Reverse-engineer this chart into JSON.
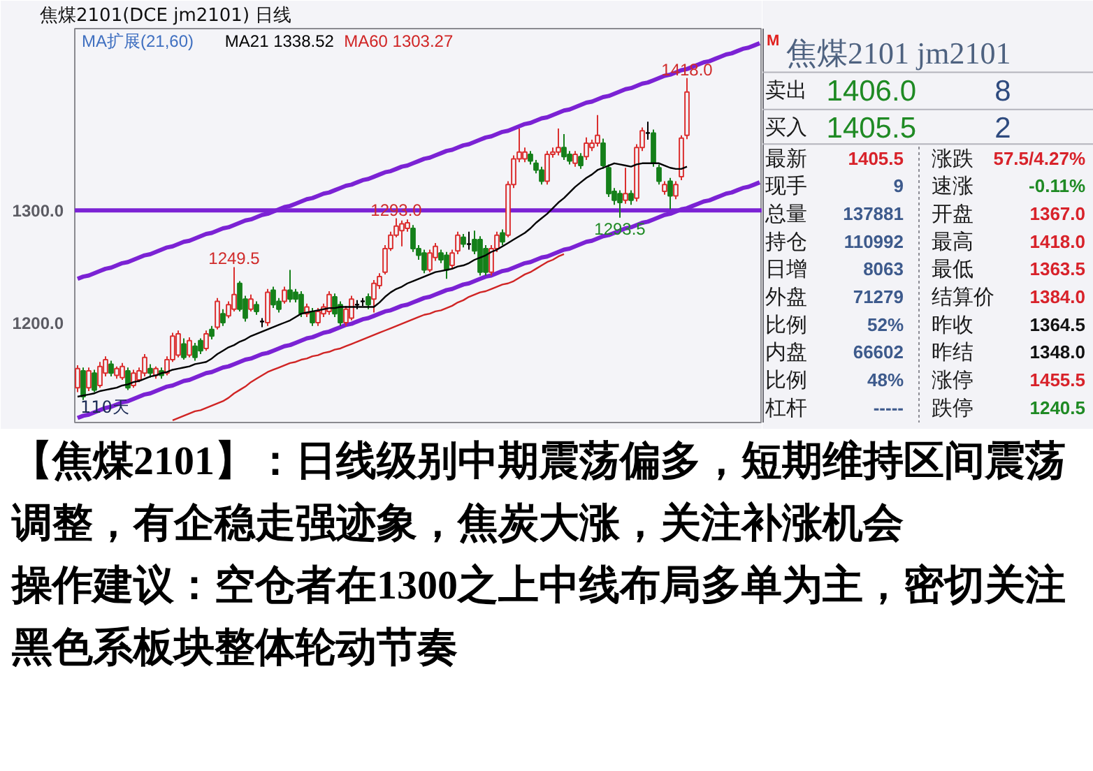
{
  "chart_data": [
    {
      "type": "candlestick",
      "title": "焦煤2101(DCE jm2101)  日线",
      "categories": [
        null,
        null,
        null,
        null,
        null,
        null,
        null,
        null,
        null,
        null,
        null,
        null,
        null,
        null,
        null,
        null,
        null,
        null,
        null,
        null,
        null,
        null,
        null,
        null,
        null,
        null,
        null,
        null,
        null,
        null,
        null,
        null,
        null,
        null,
        null,
        null,
        null,
        null,
        null,
        null,
        null,
        null,
        null,
        null,
        null,
        null,
        null,
        null,
        null,
        null,
        null,
        null,
        null,
        null,
        null,
        null,
        null,
        null,
        null,
        null,
        null,
        null,
        null,
        null,
        null,
        null,
        null,
        null,
        null,
        null,
        null,
        null,
        null,
        null,
        null,
        null,
        null,
        null,
        null,
        null,
        null,
        null,
        null,
        null,
        null,
        null,
        null,
        null,
        null,
        null,
        null,
        null,
        null,
        null,
        null,
        null,
        null,
        null,
        null,
        null,
        null,
        null,
        null,
        null,
        null,
        null,
        null,
        null,
        null,
        null,
        null,
        null,
        null,
        null,
        null,
        null,
        null,
        null,
        null,
        null,
        null,
        null,
        null
      ],
      "ohlc": [
        [
          1142,
          1162,
          1138,
          1159
        ],
        [
          1157,
          1160,
          1131,
          1134
        ],
        [
          1142,
          1160,
          1139,
          1157
        ],
        [
          1155,
          1158,
          1138,
          1140
        ],
        [
          1144,
          1165,
          1142,
          1161
        ],
        [
          1155,
          1170,
          1152,
          1167
        ],
        [
          1163,
          1166,
          1152,
          1155
        ],
        [
          1153,
          1161,
          1150,
          1159
        ],
        [
          1151,
          1164,
          1149,
          1161
        ],
        [
          1157,
          1160,
          1140,
          1142
        ],
        [
          1144,
          1158,
          1142,
          1155
        ],
        [
          1149,
          1160,
          1147,
          1157
        ],
        [
          1155,
          1172,
          1152,
          1169
        ],
        [
          1159,
          1163,
          1151,
          1155
        ],
        [
          1153,
          1161,
          1150,
          1159
        ],
        [
          1157,
          1160,
          1150,
          1153
        ],
        [
          1155,
          1170,
          1153,
          1167
        ],
        [
          1167,
          1191,
          1165,
          1188
        ],
        [
          1171,
          1193,
          1169,
          1190
        ],
        [
          1181,
          1186,
          1167,
          1169
        ],
        [
          1171,
          1187,
          1169,
          1184
        ],
        [
          1179,
          1182,
          1166,
          1169
        ],
        [
          1184,
          1186,
          1172,
          1175
        ],
        [
          1177,
          1193,
          1175,
          1190
        ],
        [
          1194,
          1197,
          1185,
          1188
        ],
        [
          1196,
          1222,
          1194,
          1219
        ],
        [
          1208,
          1212,
          1197,
          1200
        ],
        [
          1206,
          1219,
          1204,
          1216
        ],
        [
          1212,
          1249.5,
          1210,
          1225
        ],
        [
          1235,
          1237,
          1210,
          1212
        ],
        [
          1221,
          1224,
          1201,
          1204
        ],
        [
          1212,
          1225,
          1210,
          1221
        ],
        [
          1216,
          1219,
          1207,
          1210
        ],
        [
          1201,
          1204,
          1196,
          1201
        ],
        [
          1200,
          1230,
          1197,
          1227
        ],
        [
          1229,
          1232,
          1213,
          1216
        ],
        [
          1219,
          1222,
          1209,
          1212
        ],
        [
          1219,
          1232,
          1217,
          1229
        ],
        [
          1229,
          1247,
          1218,
          1221
        ],
        [
          1227,
          1230,
          1218,
          1221
        ],
        [
          1225,
          1228,
          1205,
          1208
        ],
        [
          1208,
          1217,
          1205,
          1214
        ],
        [
          1210,
          1213,
          1197,
          1200
        ],
        [
          1200,
          1213,
          1197,
          1210
        ],
        [
          1208,
          1217,
          1205,
          1214
        ],
        [
          1210,
          1228,
          1207,
          1225
        ],
        [
          1223,
          1226,
          1205,
          1208
        ],
        [
          1216,
          1219,
          1197,
          1200
        ],
        [
          1200,
          1215,
          1197,
          1212
        ],
        [
          1204,
          1224,
          1202,
          1221
        ],
        [
          1216,
          1220,
          1212,
          1216
        ],
        [
          1219,
          1222,
          1215,
          1219
        ],
        [
          1223,
          1226,
          1212,
          1216
        ],
        [
          1221,
          1238,
          1209,
          1235
        ],
        [
          1233,
          1244,
          1230,
          1241
        ],
        [
          1245,
          1269,
          1243,
          1266
        ],
        [
          1266,
          1281,
          1264,
          1278
        ],
        [
          1278,
          1293.0,
          1276,
          1286
        ],
        [
          1282,
          1291,
          1268,
          1288
        ],
        [
          1284,
          1292,
          1281,
          1289
        ],
        [
          1284,
          1287,
          1263,
          1266
        ],
        [
          1266,
          1269,
          1256,
          1260
        ],
        [
          1262,
          1265,
          1244,
          1247
        ],
        [
          1247,
          1265,
          1245,
          1262
        ],
        [
          1258,
          1271,
          1255,
          1268
        ],
        [
          1262,
          1265,
          1253,
          1256
        ],
        [
          1260,
          1263,
          1239,
          1247
        ],
        [
          1251,
          1265,
          1248,
          1262
        ],
        [
          1264,
          1281,
          1261,
          1278
        ],
        [
          1276,
          1279,
          1267,
          1270
        ],
        [
          1270,
          1281,
          1265,
          1270
        ],
        [
          1274,
          1282,
          1261,
          1264
        ],
        [
          1274,
          1277,
          1242,
          1245
        ],
        [
          1266,
          1269,
          1242,
          1245
        ],
        [
          1245,
          1269,
          1242,
          1266
        ],
        [
          1266,
          1281,
          1263,
          1278
        ],
        [
          1280,
          1283,
          1269,
          1272
        ],
        [
          1278,
          1326,
          1276,
          1323
        ],
        [
          1323,
          1349,
          1320,
          1346
        ],
        [
          1346,
          1373,
          1343,
          1352
        ],
        [
          1346,
          1356,
          1343,
          1352
        ],
        [
          1350,
          1353,
          1341,
          1344
        ],
        [
          1342,
          1345,
          1333,
          1336
        ],
        [
          1336,
          1339,
          1323,
          1326
        ],
        [
          1326,
          1353,
          1323,
          1350
        ],
        [
          1350,
          1356,
          1347,
          1352
        ],
        [
          1352,
          1373,
          1349,
          1356
        ],
        [
          1356,
          1368,
          1345,
          1348
        ],
        [
          1350,
          1353,
          1341,
          1344
        ],
        [
          1342,
          1353,
          1339,
          1350
        ],
        [
          1348,
          1351,
          1337,
          1340
        ],
        [
          1348,
          1365,
          1345,
          1360
        ],
        [
          1356,
          1363,
          1353,
          1360
        ],
        [
          1360,
          1385,
          1357,
          1367
        ],
        [
          1360,
          1364,
          1337,
          1340
        ],
        [
          1338,
          1341,
          1312,
          1315
        ],
        [
          1317,
          1320,
          1305,
          1309
        ],
        [
          1315,
          1318,
          1293.5,
          1307
        ],
        [
          1309,
          1338,
          1306,
          1315
        ],
        [
          1315,
          1318,
          1305,
          1309
        ],
        [
          1311,
          1359,
          1308,
          1356
        ],
        [
          1356,
          1374,
          1353,
          1371
        ],
        [
          1369,
          1379,
          1363,
          1369
        ],
        [
          1369,
          1372,
          1339,
          1342
        ],
        [
          1338,
          1341,
          1323,
          1326
        ],
        [
          1317,
          1326,
          1314,
          1323
        ],
        [
          1326,
          1329,
          1301,
          1313
        ],
        [
          1313,
          1326,
          1310,
          1323
        ],
        [
          1330,
          1367,
          1327,
          1364.5
        ],
        [
          1367,
          1418.0,
          1363.5,
          1405.5
        ],
        null,
        null,
        null,
        null,
        null,
        null,
        null,
        null,
        null,
        null,
        null,
        null,
        null
      ],
      "colors": [
        "#db2f2f",
        "#15801a",
        "#db2f2f",
        "#15801a",
        "#db2f2f",
        "#db2f2f",
        "#15801a",
        "#db2f2f",
        "#db2f2f",
        "#15801a",
        "#db2f2f",
        "#db2f2f",
        "#db2f2f",
        "#15801a",
        "#db2f2f",
        "#15801a",
        "#db2f2f",
        "#db2f2f",
        "#db2f2f",
        "#15801a",
        "#db2f2f",
        "#15801a",
        "#15801a",
        "#db2f2f",
        "#15801a",
        "#db2f2f",
        "#15801a",
        "#db2f2f",
        "#db2f2f",
        "#15801a",
        "#15801a",
        "#db2f2f",
        "#15801a",
        "#000000",
        "#db2f2f",
        "#15801a",
        "#15801a",
        "#db2f2f",
        "#15801a",
        "#15801a",
        "#15801a",
        "#db2f2f",
        "#15801a",
        "#db2f2f",
        "#db2f2f",
        "#db2f2f",
        "#15801a",
        "#15801a",
        "#db2f2f",
        "#db2f2f",
        "#000000",
        "#000000",
        "#15801a",
        "#db2f2f",
        "#db2f2f",
        "#db2f2f",
        "#db2f2f",
        "#db2f2f",
        "#db2f2f",
        "#db2f2f",
        "#15801a",
        "#15801a",
        "#15801a",
        "#db2f2f",
        "#db2f2f",
        "#15801a",
        "#15801a",
        "#db2f2f",
        "#db2f2f",
        "#15801a",
        "#000000",
        "#15801a",
        "#15801a",
        "#15801a",
        "#db2f2f",
        "#db2f2f",
        "#15801a",
        "#db2f2f",
        "#db2f2f",
        "#db2f2f",
        "#db2f2f",
        "#15801a",
        "#15801a",
        "#15801a",
        "#db2f2f",
        "#db2f2f",
        "#db2f2f",
        "#15801a",
        "#15801a",
        "#db2f2f",
        "#15801a",
        "#db2f2f",
        "#db2f2f",
        "#db2f2f",
        "#15801a",
        "#15801a",
        "#15801a",
        "#15801a",
        "#db2f2f",
        "#15801a",
        "#db2f2f",
        "#db2f2f",
        "#000000",
        "#15801a",
        "#15801a",
        "#db2f2f",
        "#15801a",
        "#db2f2f",
        "#db2f2f",
        "#db2f2f",
        null,
        null,
        null,
        null,
        null,
        null,
        null,
        null,
        null,
        null,
        null,
        null,
        null
      ],
      "series": [
        {
          "type": "line",
          "name": "MA21 1338.52",
          "color": "#000000",
          "values": [
            1134,
            1135,
            1136,
            1137,
            1139,
            1140,
            1141,
            1142,
            1144,
            1145,
            1147,
            1148,
            1150,
            1152,
            1153,
            1155,
            1156,
            1158,
            1159,
            1160,
            1161,
            1163,
            1164,
            1165,
            1168,
            1172,
            1175,
            1178,
            1180,
            1183,
            1185,
            1188,
            1190,
            1192,
            1194,
            1196,
            1198,
            1200,
            1202,
            1205,
            1208,
            1209,
            1210,
            1211,
            1212,
            1213,
            1213,
            1214,
            1214,
            1214,
            1214,
            1214,
            1214,
            1214,
            1218,
            1223,
            1227,
            1230,
            1232,
            1235,
            1237,
            1239,
            1241,
            1243,
            1245,
            1246,
            1247,
            1248,
            1250,
            1251,
            1253,
            1256,
            1258,
            1260,
            1263,
            1265,
            1268,
            1271,
            1274,
            1277,
            1280,
            1284,
            1289,
            1293,
            1297,
            1302,
            1307,
            1311,
            1316,
            1321,
            1325,
            1329,
            1332,
            1336,
            1338,
            1340,
            1342,
            1341,
            1340,
            1339,
            1341,
            1342,
            1342,
            1342,
            1342,
            1340,
            1338,
            1337,
            1337,
            1339,
            null,
            null,
            null,
            null,
            null,
            null,
            null,
            null,
            null,
            null,
            null,
            null,
            null
          ]
        },
        {
          "type": "line",
          "name": "MA60 1303.27",
          "color": "#d02424",
          "values": [
            null,
            null,
            null,
            null,
            null,
            null,
            null,
            null,
            null,
            null,
            null,
            null,
            null,
            null,
            null,
            null,
            null,
            1113,
            1115,
            1117,
            1119,
            1121,
            1122,
            1124,
            1126,
            1128,
            1130,
            1133,
            1137,
            1140,
            1143,
            1147,
            1150,
            1153,
            1156,
            1158,
            1160,
            1162,
            1164,
            1165,
            1167,
            1168,
            1170,
            1171,
            1173,
            1174,
            1176,
            1177,
            1179,
            1181,
            1183,
            1185,
            1187,
            1189,
            1191,
            1193,
            1195,
            1197,
            1199,
            1201,
            1203,
            1205,
            1207,
            1208,
            1210,
            1211,
            1213,
            1215,
            1218,
            1220,
            1223,
            1225,
            1227,
            1228,
            1230,
            1232,
            1234,
            1235,
            1237,
            1240,
            1243,
            1245,
            1248,
            1251,
            1254,
            1256,
            1259,
            1261,
            null,
            null,
            null,
            null,
            null,
            null,
            null,
            null,
            null,
            null,
            null,
            null,
            null,
            null,
            null,
            null,
            null,
            null,
            null,
            null,
            null,
            null,
            null,
            null,
            null,
            null,
            null,
            null,
            null,
            null,
            null,
            null,
            null,
            null,
            null
          ]
        },
        {
          "type": "line",
          "color": "#7b22d4",
          "values": [
            1239,
            1241,
            1242,
            1244,
            1246,
            1248,
            1249,
            1251,
            1253,
            1254,
            1256,
            1258,
            1260,
            1261,
            1263,
            1265,
            1267,
            1268,
            1270,
            1272,
            1273,
            1275,
            1277,
            1279,
            1280,
            1282,
            1284,
            1285,
            1287,
            1289,
            1291,
            1292,
            1294,
            1296,
            1297,
            1299,
            1301,
            1303,
            1304,
            1306,
            1308,
            1310,
            1311,
            1313,
            1315,
            1316,
            1318,
            1320,
            1322,
            1323,
            1325,
            1327,
            1328,
            1330,
            1332,
            1334,
            1335,
            1337,
            1339,
            1340,
            1342,
            1344,
            1346,
            1347,
            1349,
            1351,
            1353,
            1354,
            1356,
            1358,
            1359,
            1361,
            1363,
            1365,
            1366,
            1368,
            1370,
            1371,
            1373,
            1375,
            1377,
            1378,
            1380,
            1382,
            1383,
            1385,
            1387,
            1389,
            1390,
            1392,
            1394,
            1396,
            1397,
            1399,
            1401,
            1402,
            1404,
            1406,
            1408,
            1409,
            1411,
            1413,
            1414,
            1416,
            1418,
            1420,
            1421,
            1423,
            1425,
            1426,
            1428,
            1430,
            1432,
            1433,
            1435,
            1437,
            1439,
            1440,
            1442,
            1444,
            1445,
            1447,
            1449
          ]
        },
        {
          "type": "line",
          "color": "#7b22d4",
          "values": [
            1115,
            1117,
            1118,
            1120,
            1122,
            1124,
            1125,
            1127,
            1129,
            1130,
            1132,
            1134,
            1136,
            1137,
            1139,
            1141,
            1143,
            1144,
            1146,
            1148,
            1149,
            1151,
            1153,
            1155,
            1156,
            1158,
            1160,
            1161,
            1163,
            1165,
            1167,
            1168,
            1170,
            1172,
            1173,
            1175,
            1177,
            1179,
            1180,
            1182,
            1184,
            1186,
            1187,
            1189,
            1191,
            1192,
            1194,
            1196,
            1198,
            1199,
            1201,
            1203,
            1204,
            1206,
            1208,
            1210,
            1211,
            1213,
            1215,
            1216,
            1218,
            1220,
            1222,
            1223,
            1225,
            1227,
            1229,
            1230,
            1232,
            1234,
            1235,
            1237,
            1239,
            1241,
            1242,
            1244,
            1246,
            1247,
            1249,
            1251,
            1253,
            1254,
            1256,
            1258,
            1259,
            1261,
            1263,
            1265,
            1266,
            1268,
            1270,
            1272,
            1273,
            1275,
            1277,
            1278,
            1280,
            1282,
            1284,
            1285,
            1287,
            1289,
            1290,
            1292,
            1294,
            1296,
            1297,
            1299,
            1301,
            1302,
            1304,
            1306,
            1308,
            1309,
            1311,
            1313,
            1315,
            1316,
            1318,
            1320,
            1321,
            1323,
            1325
          ]
        }
      ],
      "legend": "top left",
      "legend_title": "MA扩展(21,60)",
      "ylim": [
        1111,
        1462
      ],
      "yticks": [
        {
          "value": 1200,
          "label": "1200.0"
        },
        {
          "value": 1300,
          "label": "1300.0"
        }
      ],
      "tick_labels": "y",
      "ref_lines": [
        {
          "axis": "y",
          "value": 1300,
          "color": "#7b22d4"
        }
      ],
      "annotations": [
        "110天",
        {
          "text": "1249.5",
          "y": 1249.5
        },
        {
          "text": "1293.0",
          "y": 1293.0
        },
        {
          "text": "1418.0",
          "y": 1418.0
        },
        {
          "text": "1293.5",
          "y": 1293.5
        }
      ]
    },
    {
      "type": "other",
      "title": "焦煤2101  jm2101",
      "annotations": [
        "M",
        "卖出",
        "1406.0",
        "8",
        "买入",
        "1405.5",
        "2",
        "最新",
        "1405.5",
        "涨跌",
        "57.5/4.27%",
        "现手",
        "9",
        "速涨",
        "-0.11%",
        "总量",
        "137881",
        "开盘",
        "1367.0",
        "持仓",
        "110992",
        "最高",
        "1418.0",
        "日增",
        "8063",
        "最低",
        "1363.5",
        "外盘",
        "71279",
        "结算价",
        "1384.0",
        "比例",
        "52%",
        "昨收",
        "1364.5",
        "内盘",
        "66602",
        "昨结",
        "1348.0",
        "比例",
        "48%",
        "涨停",
        "1455.5",
        "杠杆",
        "-----",
        "跌停",
        "1240.5"
      ],
      "colors": [
        "#e0201e",
        "#1a1a1a",
        "#1f8a24",
        "#2e4a7e",
        "#1a1a1a",
        "#1f8a24",
        "#2e4a7e",
        "#1a1a1a",
        "#d8222a",
        "#1a1a1a",
        "#d8222a",
        "#1a1a1a",
        "#3d5a8c",
        "#1a1a1a",
        "#1f8a24",
        "#1a1a1a",
        "#3d5a8c",
        "#1a1a1a",
        "#d8222a",
        "#1a1a1a",
        "#3d5a8c",
        "#1a1a1a",
        "#d8222a",
        "#1a1a1a",
        "#3d5a8c",
        "#1a1a1a",
        "#d8222a",
        "#1a1a1a",
        "#3d5a8c",
        "#1a1a1a",
        "#d8222a",
        "#1a1a1a",
        "#3d5a8c",
        "#1a1a1a",
        "#111111",
        "#1a1a1a",
        "#3d5a8c",
        "#1a1a1a",
        "#111111",
        "#1a1a1a",
        "#3d5a8c",
        "#1a1a1a",
        "#d8222a",
        "#1a1a1a",
        "#3d5a8c",
        "#1a1a1a",
        "#1f8a24"
      ]
    },
    {
      "type": "other",
      "annotations": [
        "【焦煤2101】：日线级别中期震荡偏多，短期维持区间震荡",
        "调整，有企稳走强迹象，焦炭大涨，关注补涨机会",
        "操作建议：空仓者在1300之上中线布局多单为主，密切关注",
        "黑色系板块整体轮动节奏"
      ]
    }
  ]
}
